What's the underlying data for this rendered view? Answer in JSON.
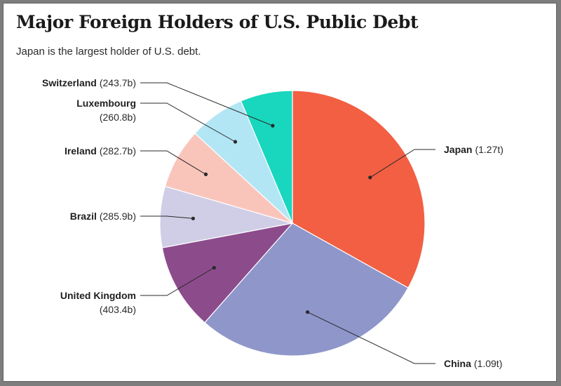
{
  "chart_data": {
    "type": "pie",
    "title": "Major Foreign Holders of U.S. Public Debt",
    "subtitle": "Japan is the largest holder of U.S. debt.",
    "slices": [
      {
        "name": "Japan",
        "value_label": "(1.27t)",
        "value": 1270,
        "color": "#f25f43"
      },
      {
        "name": "China",
        "value_label": "(1.09t)",
        "value": 1090,
        "color": "#8f96ca"
      },
      {
        "name": "United Kingdom",
        "value_label": "(403.4b)",
        "value": 403.4,
        "color": "#8c4c8c"
      },
      {
        "name": "Brazil",
        "value_label": "(285.9b)",
        "value": 285.9,
        "color": "#d0cde6"
      },
      {
        "name": "Ireland",
        "value_label": "(282.7b)",
        "value": 282.7,
        "color": "#f9c5bb"
      },
      {
        "name": "Luxembourg",
        "value_label": "(260.8b)",
        "value": 260.8,
        "color": "#b2e6f4"
      },
      {
        "name": "Switzerland",
        "value_label": "(243.7b)",
        "value": 243.7,
        "color": "#19d7be"
      }
    ]
  }
}
